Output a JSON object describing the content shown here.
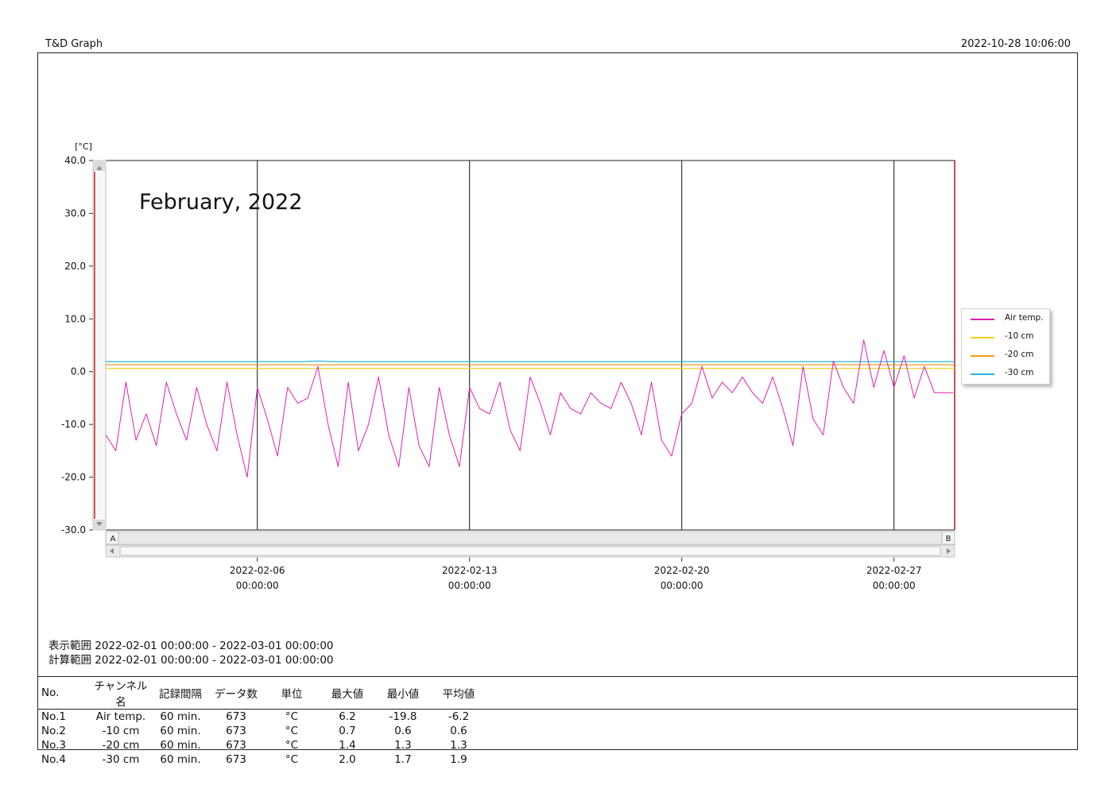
{
  "header": {
    "app_title": "T&D Graph",
    "printed_at": "2022-10-28 10:06:00"
  },
  "chart_data": {
    "type": "line",
    "title": "February, 2022",
    "ylabel": "[°C]",
    "ylim": [
      -30,
      40
    ],
    "yticks": [
      40,
      30,
      20,
      10,
      0,
      -10,
      -20,
      -30
    ],
    "ytick_labels": [
      "40.0",
      "30.0",
      "20.0",
      "10.0",
      "0.0",
      "-10.0",
      "-20.0",
      "-30.0"
    ],
    "xlim": [
      "2022-02-01 00:00:00",
      "2022-03-01 00:00:00"
    ],
    "x_ticks": [
      {
        "x": "2022-02-06 00:00:00",
        "date": "2022-02-06",
        "time": "00:00:00"
      },
      {
        "x": "2022-02-13 00:00:00",
        "date": "2022-02-13",
        "time": "00:00:00"
      },
      {
        "x": "2022-02-20 00:00:00",
        "date": "2022-02-20",
        "time": "00:00:00"
      },
      {
        "x": "2022-02-27 00:00:00",
        "date": "2022-02-27",
        "time": "00:00:00"
      }
    ],
    "vertical_gridlines": true,
    "horizontal_gridlines": false,
    "legend_position": "right",
    "scrollbar_labels": {
      "start": "A",
      "end": "B"
    },
    "series": [
      {
        "name": "Air temp.",
        "color": "#e020b0",
        "x": [
          "2022-02-01 00:00",
          "2022-02-01 08:00",
          "2022-02-01 16:00",
          "2022-02-02 00:00",
          "2022-02-02 08:00",
          "2022-02-02 16:00",
          "2022-02-03 00:00",
          "2022-02-03 08:00",
          "2022-02-03 16:00",
          "2022-02-04 00:00",
          "2022-02-04 08:00",
          "2022-02-04 16:00",
          "2022-02-05 00:00",
          "2022-02-05 08:00",
          "2022-02-05 16:00",
          "2022-02-06 00:00",
          "2022-02-06 08:00",
          "2022-02-06 16:00",
          "2022-02-07 00:00",
          "2022-02-07 08:00",
          "2022-02-07 16:00",
          "2022-02-08 00:00",
          "2022-02-08 08:00",
          "2022-02-08 16:00",
          "2022-02-09 00:00",
          "2022-02-09 08:00",
          "2022-02-09 16:00",
          "2022-02-10 00:00",
          "2022-02-10 08:00",
          "2022-02-10 16:00",
          "2022-02-11 00:00",
          "2022-02-11 08:00",
          "2022-02-11 16:00",
          "2022-02-12 00:00",
          "2022-02-12 08:00",
          "2022-02-12 16:00",
          "2022-02-13 00:00",
          "2022-02-13 08:00",
          "2022-02-13 16:00",
          "2022-02-14 00:00",
          "2022-02-14 08:00",
          "2022-02-14 16:00",
          "2022-02-15 00:00",
          "2022-02-15 08:00",
          "2022-02-15 16:00",
          "2022-02-16 00:00",
          "2022-02-16 08:00",
          "2022-02-16 16:00",
          "2022-02-17 00:00",
          "2022-02-17 08:00",
          "2022-02-17 16:00",
          "2022-02-18 00:00",
          "2022-02-18 08:00",
          "2022-02-18 16:00",
          "2022-02-19 00:00",
          "2022-02-19 08:00",
          "2022-02-19 16:00",
          "2022-02-20 00:00",
          "2022-02-20 08:00",
          "2022-02-20 16:00",
          "2022-02-21 00:00",
          "2022-02-21 08:00",
          "2022-02-21 16:00",
          "2022-02-22 00:00",
          "2022-02-22 08:00",
          "2022-02-22 16:00",
          "2022-02-23 00:00",
          "2022-02-23 08:00",
          "2022-02-23 16:00",
          "2022-02-24 00:00",
          "2022-02-24 08:00",
          "2022-02-24 16:00",
          "2022-02-25 00:00",
          "2022-02-25 08:00",
          "2022-02-25 16:00",
          "2022-02-26 00:00",
          "2022-02-26 08:00",
          "2022-02-26 16:00",
          "2022-02-27 00:00",
          "2022-02-27 08:00",
          "2022-02-27 16:00",
          "2022-02-28 00:00",
          "2022-02-28 08:00",
          "2022-02-28 16:00",
          "2022-02-28 23:00"
        ],
        "values": [
          -12,
          -15,
          -2,
          -13,
          -8,
          -14,
          -2,
          -8,
          -13,
          -3,
          -10,
          -15,
          -2,
          -12,
          -20,
          -3,
          -9,
          -16,
          -3,
          -6,
          -5,
          1,
          -10,
          -18,
          -2,
          -15,
          -10,
          -1,
          -12,
          -18,
          -3,
          -14,
          -18,
          -3,
          -12,
          -18,
          -3,
          -7,
          -8,
          -2,
          -11,
          -15,
          -1,
          -6,
          -12,
          -4,
          -7,
          -8,
          -4,
          -6,
          -7,
          -2,
          -6,
          -12,
          -2,
          -13,
          -16,
          -8,
          -6,
          1,
          -5,
          -2,
          -4,
          -1,
          -4,
          -6,
          -1,
          -7,
          -14,
          1,
          -9,
          -12,
          2,
          -3,
          -6,
          6,
          -3,
          4,
          -3,
          3,
          -5,
          1,
          -4,
          -4,
          -4
        ],
        "stats": {
          "no": "No.1",
          "interval": "60 min.",
          "count": "673",
          "unit": "°C",
          "max": "6.2",
          "min": "-19.8",
          "avg": "-6.2"
        }
      },
      {
        "name": "-10 cm",
        "color": "#f2d21c",
        "x": [
          "2022-02-01 00:00",
          "2022-03-01 00:00"
        ],
        "values": [
          0.6,
          0.6
        ],
        "stats": {
          "no": "No.2",
          "interval": "60 min.",
          "count": "673",
          "unit": "°C",
          "max": "0.7",
          "min": "0.6",
          "avg": "0.6"
        }
      },
      {
        "name": "-20 cm",
        "color": "#f29a1c",
        "x": [
          "2022-02-01 00:00",
          "2022-03-01 00:00"
        ],
        "values": [
          1.3,
          1.3
        ],
        "stats": {
          "no": "No.3",
          "interval": "60 min.",
          "count": "673",
          "unit": "°C",
          "max": "1.4",
          "min": "1.3",
          "avg": "1.3"
        }
      },
      {
        "name": "-30 cm",
        "color": "#2ab4d8",
        "x": [
          "2022-02-01 00:00",
          "2022-02-07 12:00",
          "2022-02-08 00:00",
          "2022-02-08 12:00",
          "2022-03-01 00:00"
        ],
        "values": [
          1.9,
          1.9,
          2.0,
          1.9,
          1.9
        ],
        "stats": {
          "no": "No.4",
          "interval": "60 min.",
          "count": "673",
          "unit": "°C",
          "max": "2.0",
          "min": "1.7",
          "avg": "1.9"
        }
      }
    ]
  },
  "ranges": {
    "display_label": "表示範囲",
    "display_value": "2022-02-01 00:00:00 - 2022-03-01 00:00:00",
    "calc_label": "計算範囲",
    "calc_value": "2022-02-01 00:00:00 - 2022-03-01 00:00:00"
  },
  "stats_table": {
    "headers": [
      "No.",
      "チャンネル名",
      "記録間隔",
      "データ数",
      "単位",
      "最大値",
      "最小値",
      "平均値"
    ]
  }
}
